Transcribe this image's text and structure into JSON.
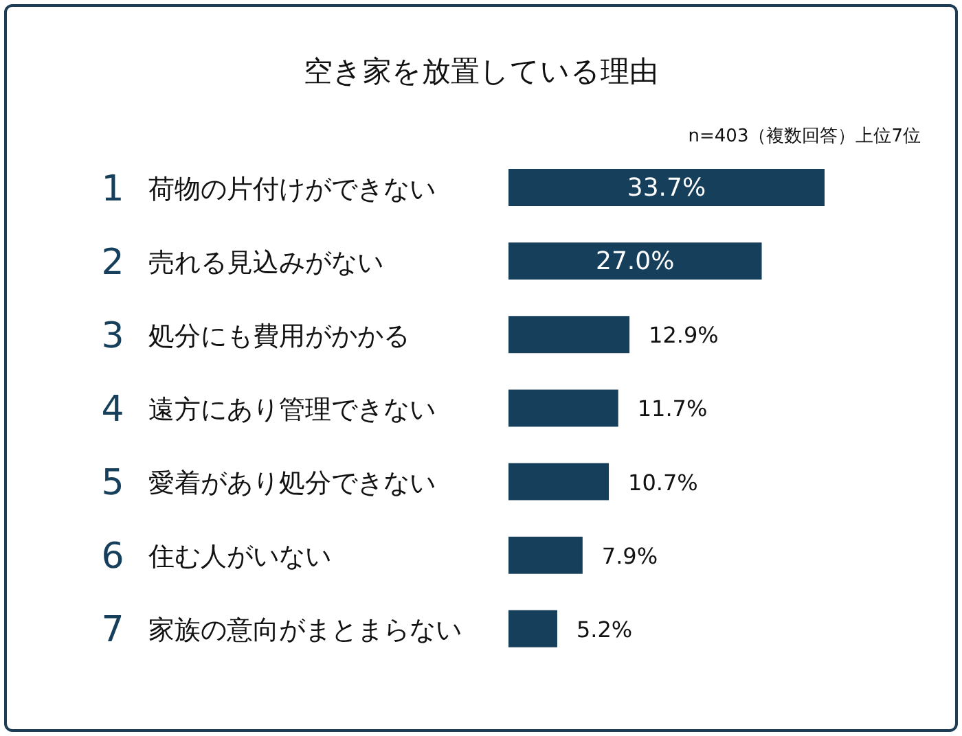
{
  "chart_data": {
    "type": "bar",
    "orientation": "horizontal",
    "title": "空き家を放置している理由",
    "subtitle": "n=403（複数回答）上位7位",
    "categories": [
      "1 荷物の片付けができない",
      "2 売れる見込みがない",
      "3 処分にも費用がかかる",
      "4 遠方にあり管理できない",
      "5 愛着があり処分できない",
      "6 住む人がいない",
      "7 家族の意向がまとまらない"
    ],
    "values": [
      33.7,
      27.0,
      12.9,
      11.7,
      10.7,
      7.9,
      5.2
    ],
    "value_labels": [
      "33.7%",
      "27.0%",
      "12.9%",
      "11.7%",
      "10.7%",
      "7.9%",
      "5.2%"
    ],
    "color": "#163f5c"
  }
}
